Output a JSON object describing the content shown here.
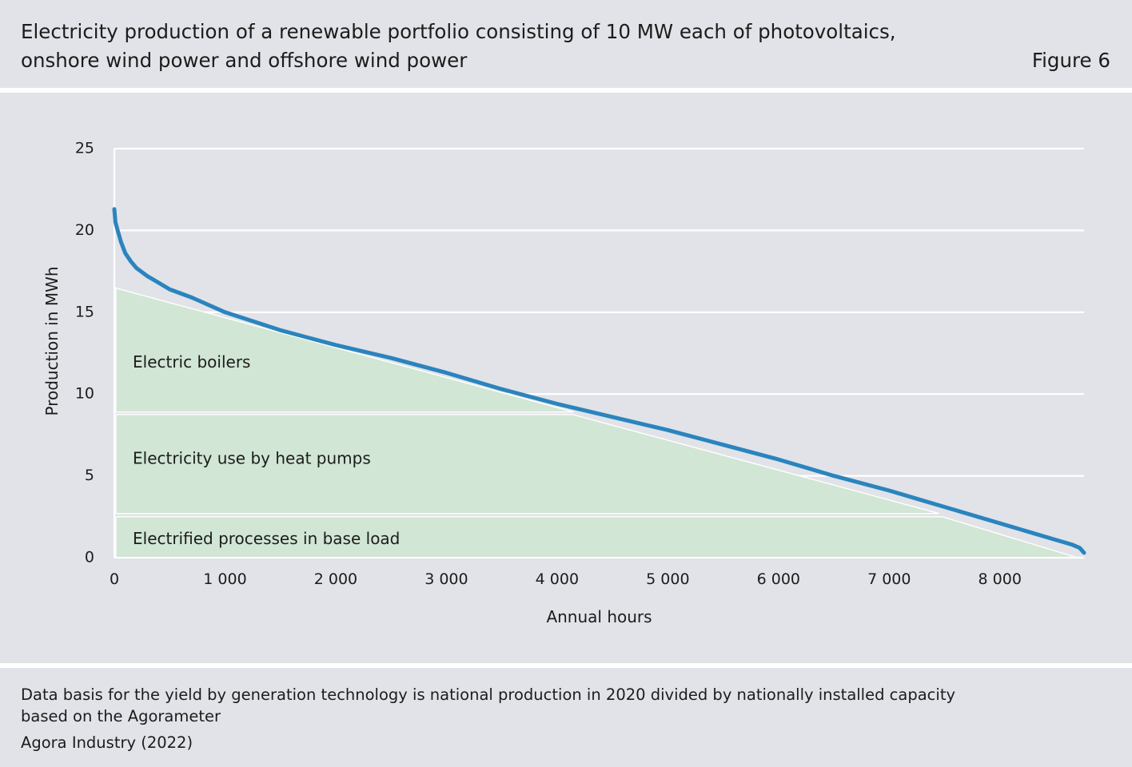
{
  "header": {
    "title_line1": "Electricity production of a renewable portfolio consisting of 10 MW each of photovoltaics,",
    "title_line2": "onshore wind power and offshore wind power",
    "figure_label": "Figure 6"
  },
  "chart_data": {
    "type": "line",
    "title": "Electricity production of a renewable portfolio consisting of 10 MW each of photovoltaics, onshore wind power and offshore wind power",
    "xlabel": "Annual hours",
    "ylabel": "Production in MWh",
    "xlim": [
      0,
      8760
    ],
    "ylim": [
      0,
      25
    ],
    "x_ticks": [
      0,
      1000,
      2000,
      3000,
      4000,
      5000,
      6000,
      7000,
      8000
    ],
    "x_tick_labels": [
      "0",
      "1 000",
      "2 000",
      "3 000",
      "4 000",
      "5 000",
      "6 000",
      "7 000",
      "8 000"
    ],
    "y_ticks": [
      0,
      5,
      10,
      15,
      20,
      25
    ],
    "y_tick_labels": [
      "0",
      "5",
      "10",
      "15",
      "20",
      "25"
    ],
    "grid": "horizontal",
    "series": [
      {
        "values_x": [
          0,
          10,
          30,
          60,
          100,
          150,
          200,
          300,
          400,
          500,
          700,
          1000,
          1500,
          2000,
          2500,
          3000,
          3500,
          4000,
          4500,
          5000,
          5500,
          6000,
          6500,
          7000,
          7500,
          8000,
          8300,
          8500,
          8650,
          8720,
          8760
        ],
        "values_y": [
          21.3,
          20.5,
          20.0,
          19.3,
          18.6,
          18.1,
          17.7,
          17.2,
          16.8,
          16.4,
          15.9,
          15.0,
          13.9,
          13.0,
          12.2,
          11.3,
          10.3,
          9.4,
          8.6,
          7.8,
          6.9,
          6.0,
          5.0,
          4.1,
          3.1,
          2.1,
          1.5,
          1.1,
          0.8,
          0.6,
          0.3
        ],
        "color": "#2a84be"
      }
    ],
    "areas": [
      {
        "label": "Electrified processes in base load",
        "y_bottom": 0,
        "y_top": 2.5,
        "x_end": 7480,
        "x_end_bottom": 8700,
        "color": "#d1e6d4"
      },
      {
        "label": "Electricity use by heat pumps",
        "y_bottom": 2.7,
        "y_top": 8.75,
        "x_end": 4140,
        "x_end_bottom": 7450,
        "color": "#d1e6d4"
      },
      {
        "label": "Electric boilers",
        "y_bottom": 8.9,
        "y_top": 16.5,
        "x_end_bottom": 4150,
        "color": "#d1e6d4"
      }
    ]
  },
  "footer": {
    "note_line1": "Data basis for the yield by generation technology is national production in 2020 divided by nationally installed capacity",
    "note_line2": "based on the Agorameter",
    "source": "Agora Industry (2022)"
  }
}
